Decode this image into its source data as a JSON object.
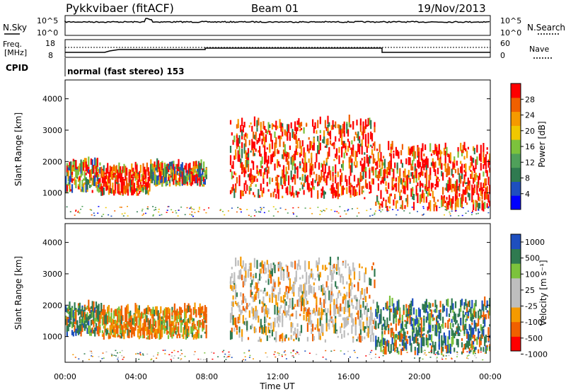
{
  "header": {
    "station": "Pykkvibaer (fitACF)",
    "beam": "Beam 01",
    "date": "19/Nov/2013"
  },
  "noise_panel": {
    "left_label": "N.Sky",
    "right_label": "N.Search",
    "tick_top_left": "10^5",
    "tick_bottom_left": "10^0",
    "tick_top_right": "10^5",
    "tick_bottom_right": "10^0"
  },
  "freq_panel": {
    "left_label_1": "Freq.",
    "left_label_2": "[MHz]",
    "tick_left_top": "18",
    "tick_left_bottom": "8",
    "right_label": "Nave",
    "tick_right_top": "60",
    "tick_right_bottom": "0"
  },
  "cpid": {
    "label": "CPID",
    "value": "normal (fast stereo) 153"
  },
  "colors": {
    "power_scale": [
      "#0000ff",
      "#1e4fbf",
      "#2f7a50",
      "#4fa05a",
      "#7cc23c",
      "#f0c800",
      "#f59a00",
      "#f06000",
      "#ff0000"
    ],
    "velocity_scale": [
      "#ff0000",
      "#f06000",
      "#f59a00",
      "#bebebe",
      "#bebebe",
      "#7cc23c",
      "#2f7a50",
      "#1e4fbf"
    ]
  },
  "chart_data": [
    {
      "type": "heatmap",
      "name": "power-panel",
      "ylabel": "Slant Range [km]",
      "xlabel": "",
      "yticks": [
        "1000",
        "2000",
        "3000",
        "4000"
      ],
      "ylim": [
        180,
        4600
      ],
      "xlim": [
        0,
        24
      ],
      "colorbar": {
        "label": "Power [dB]",
        "ticks": [
          "4",
          "8",
          "12",
          "16",
          "20",
          "24",
          "28"
        ],
        "range": [
          0,
          32
        ]
      },
      "regions": [
        {
          "t": [
            0.0,
            2.0
          ],
          "r": [
            1000,
            1900
          ],
          "level": "mid"
        },
        {
          "t": [
            2.0,
            4.8
          ],
          "r": [
            900,
            1700
          ],
          "level": "high"
        },
        {
          "t": [
            4.8,
            8.0
          ],
          "r": [
            1200,
            1800
          ],
          "level": "mid"
        },
        {
          "t": [
            9.3,
            17.5
          ],
          "r": [
            800,
            3200
          ],
          "level": "high"
        },
        {
          "t": [
            17.5,
            24.0
          ],
          "r": [
            400,
            2400
          ],
          "level": "high"
        }
      ]
    },
    {
      "type": "heatmap",
      "name": "velocity-panel",
      "ylabel": "Slant Range [km]",
      "xlabel": "Time UT",
      "xticks": [
        "00:00",
        "04:00",
        "08:00",
        "12:00",
        "16:00",
        "20:00",
        "00:00"
      ],
      "yticks": [
        "1000",
        "2000",
        "3000",
        "4000"
      ],
      "ylim": [
        180,
        4600
      ],
      "xlim": [
        0,
        24
      ],
      "colorbar": {
        "label": "Velocity [m s⁻¹]",
        "ticks": [
          "1000",
          "500",
          "100",
          "25",
          "-25",
          "-100",
          "-500",
          "-1000"
        ]
      },
      "regions": [
        {
          "t": [
            0.0,
            2.0
          ],
          "r": [
            1000,
            1900
          ],
          "level": "positive"
        },
        {
          "t": [
            2.0,
            8.0
          ],
          "r": [
            900,
            1800
          ],
          "level": "negative"
        },
        {
          "t": [
            9.3,
            17.5
          ],
          "r": [
            800,
            3300
          ],
          "level": "ground-scatter"
        },
        {
          "t": [
            17.5,
            24.0
          ],
          "r": [
            400,
            2000
          ],
          "level": "positive"
        }
      ]
    }
  ]
}
